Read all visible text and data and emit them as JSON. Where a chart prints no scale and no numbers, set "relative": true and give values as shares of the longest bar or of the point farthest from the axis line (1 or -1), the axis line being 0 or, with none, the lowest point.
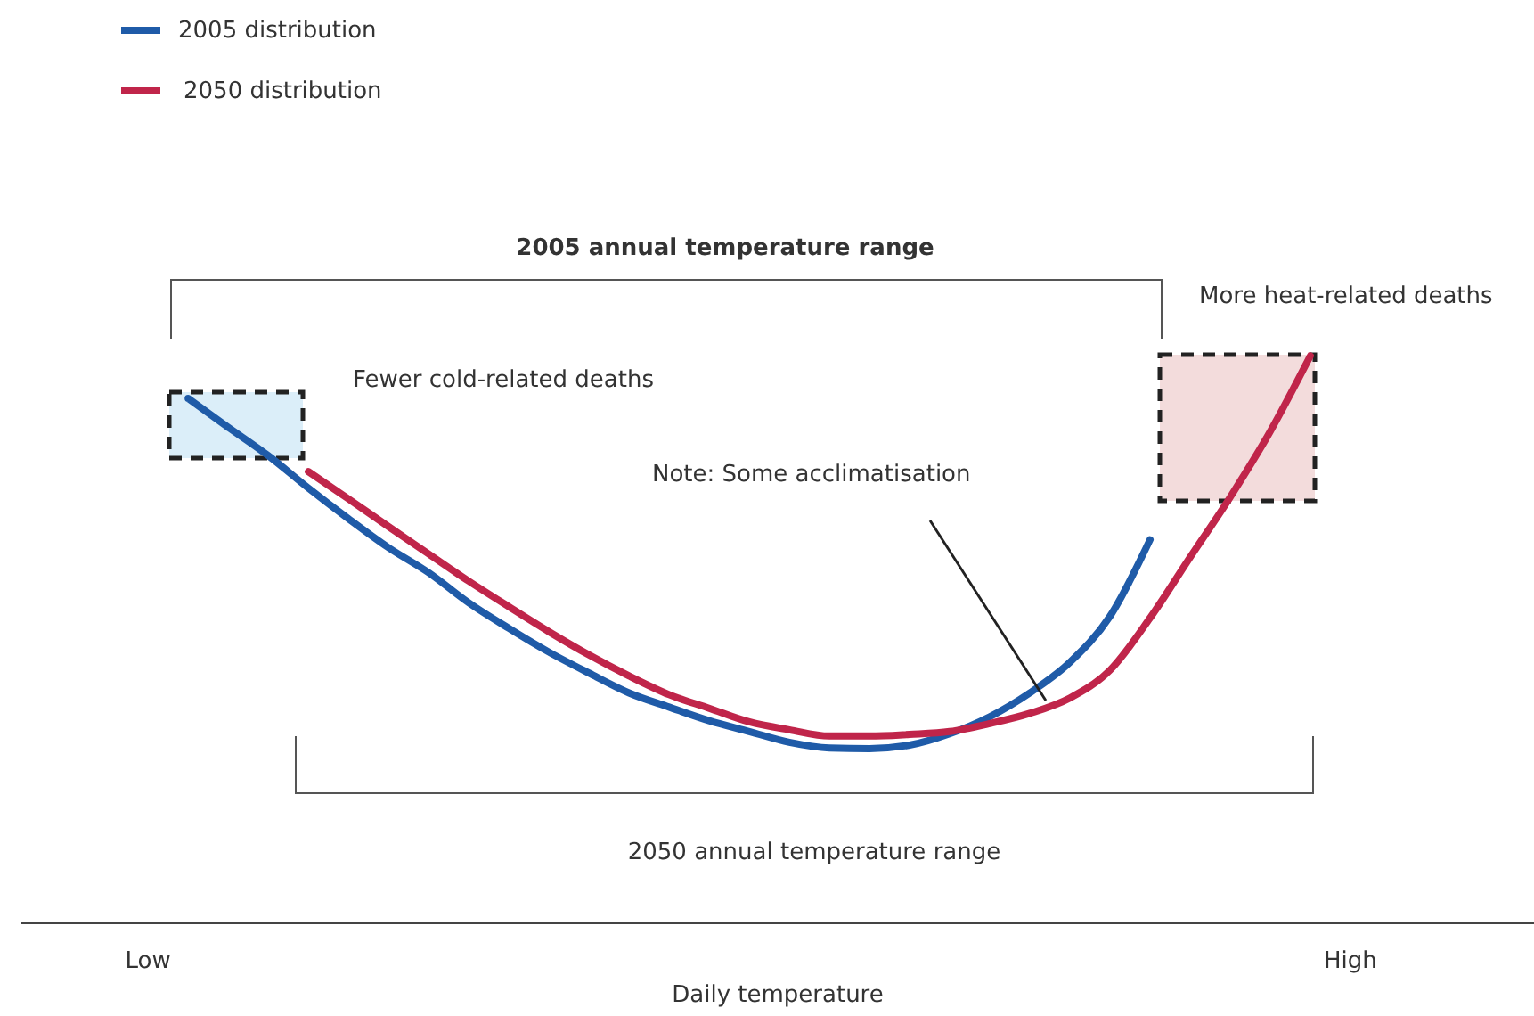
{
  "chart_data": {
    "type": "line",
    "relative": true,
    "xlabel": "Daily temperature",
    "categories": [
      null,
      null,
      null,
      "Low",
      null,
      null,
      null,
      null,
      null,
      null,
      null,
      null,
      null,
      null,
      null,
      null,
      null,
      null,
      null,
      null,
      null,
      null,
      null,
      null,
      null,
      null,
      null,
      null,
      null,
      null,
      null,
      null,
      null,
      "High",
      null,
      null,
      null,
      null
    ],
    "legend": "top left",
    "grid": false,
    "marker": "none",
    "line_style": "solid",
    "annotations": [
      "2005 annual temperature range",
      "2050 annual temperature range",
      "Fewer cold-related deaths",
      "More heat-related deaths",
      "Note: Some acclimatisation"
    ],
    "series": [
      {
        "name": "2005 distribution",
        "color": "#1f5ba8",
        "values": [
          null,
          null,
          null,
          null,
          0.925,
          0.874,
          0.824,
          0.767,
          0.713,
          0.662,
          0.618,
          0.565,
          0.52,
          0.478,
          0.441,
          0.406,
          0.381,
          0.357,
          0.338,
          0.319,
          0.309,
          0.308,
          0.314,
          0.334,
          0.364,
          0.406,
          0.46,
          0.541,
          0.676,
          null,
          null,
          null,
          null,
          null,
          null,
          null,
          null,
          null
        ]
      },
      {
        "name": "2050 distribution",
        "color": "#c0254a",
        "values": [
          null,
          null,
          null,
          null,
          null,
          null,
          null,
          0.796,
          0.748,
          0.699,
          0.651,
          0.603,
          0.558,
          0.514,
          0.473,
          0.436,
          0.403,
          0.379,
          0.355,
          0.341,
          0.33,
          0.33,
          0.333,
          0.338,
          0.352,
          0.37,
          0.397,
          0.446,
          0.538,
          0.645,
          0.751,
          0.867,
          1,
          null,
          null,
          null,
          null,
          null
        ]
      }
    ]
  }
}
